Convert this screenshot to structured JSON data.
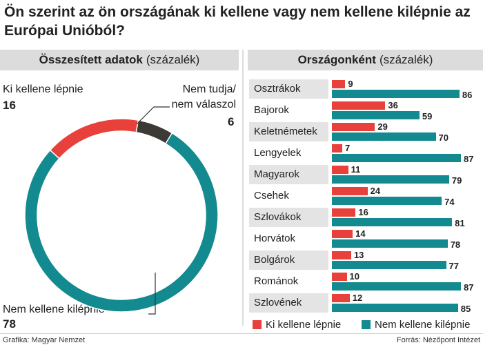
{
  "title": "Ön szerint az ön országának ki kellene vagy nem kellene kilépnie az Európai Unióból?",
  "left_panel": {
    "header_bold": "Összesített adatok",
    "header_unit": "(százalék)",
    "label_leave": "Ki kellene lépnie",
    "value_leave": "16",
    "label_dontknow_1": "Nem tudja/",
    "label_dontknow_2": "nem válaszol",
    "value_dontknow": "6",
    "label_stay": "Nem kellene kilépnie",
    "value_stay": "78"
  },
  "right_panel": {
    "header_bold": "Országonként",
    "header_unit": "(százalék)"
  },
  "legend": {
    "leave": "Ki kellene lépnie",
    "stay": "Nem kellene kilépnie"
  },
  "footer": {
    "left": "Grafika: Magyar Nemzet",
    "right": "Forrás: Nézőpont Intézet"
  },
  "colors": {
    "leave": "#e8403a",
    "stay": "#138a8f",
    "dontknow": "#3d3935"
  },
  "chart_data": [
    {
      "type": "pie",
      "variant": "donut",
      "title": "Összesített adatok",
      "categories": [
        "Ki kellene lépnie",
        "Nem tudja/nem válaszol",
        "Nem kellene kilépnie"
      ],
      "values": [
        16,
        6,
        78
      ]
    },
    {
      "type": "bar",
      "orientation": "horizontal",
      "title": "Országonként",
      "categories": [
        "Osztrákok",
        "Bajorok",
        "Keletnémetek",
        "Lengyelek",
        "Magyarok",
        "Csehek",
        "Szlovákok",
        "Horvátok",
        "Bolgárok",
        "Románok",
        "Szlovének"
      ],
      "series": [
        {
          "name": "Ki kellene lépnie",
          "values": [
            9,
            36,
            29,
            7,
            11,
            24,
            16,
            14,
            13,
            10,
            12
          ]
        },
        {
          "name": "Nem kellene kilépnie",
          "values": [
            86,
            59,
            70,
            87,
            79,
            74,
            81,
            78,
            77,
            87,
            85
          ]
        }
      ],
      "legend": "bottom"
    }
  ]
}
